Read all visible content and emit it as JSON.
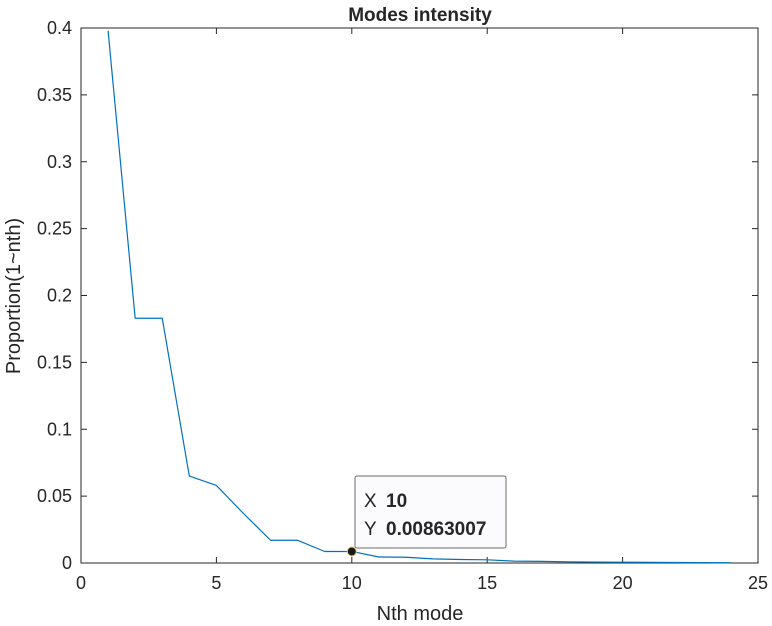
{
  "chart_data": {
    "type": "line",
    "title": "Modes intensity",
    "xlabel": "Nth mode",
    "ylabel": "Proportion(1~nth)",
    "xlim": [
      0,
      25
    ],
    "ylim": [
      0,
      0.4
    ],
    "xticks": [
      0,
      5,
      10,
      15,
      20,
      25
    ],
    "yticks": [
      0,
      0.05,
      0.1,
      0.15,
      0.2,
      0.25,
      0.3,
      0.35,
      0.4
    ],
    "xtick_labels": [
      "0",
      "5",
      "10",
      "15",
      "20",
      "25"
    ],
    "ytick_labels": [
      "0",
      "0.05",
      "0.1",
      "0.15",
      "0.2",
      "0.25",
      "0.3",
      "0.35",
      "0.4"
    ],
    "grid": false,
    "series": [
      {
        "color": "#0072bd",
        "x": [
          1,
          2,
          3,
          4,
          5,
          6,
          7,
          8,
          9,
          10,
          11,
          12,
          13,
          14,
          15,
          16,
          17,
          18,
          19,
          20,
          21,
          22,
          23,
          24
        ],
        "y": [
          0.398,
          0.183,
          0.183,
          0.065,
          0.058,
          0.037,
          0.017,
          0.017,
          0.0086,
          0.00863007,
          0.0045,
          0.0043,
          0.0031,
          0.0026,
          0.0024,
          0.0014,
          0.0012,
          0.0009,
          0.0007,
          0.0006,
          0.0005,
          0.0004,
          0.0003,
          0.0002
        ]
      }
    ],
    "datatip": {
      "x_key": "X",
      "x_value": "10",
      "y_key": "Y",
      "y_value": "0.00863007",
      "point": [
        10,
        0.00863007
      ],
      "value_color": "#0f8ae8"
    }
  }
}
